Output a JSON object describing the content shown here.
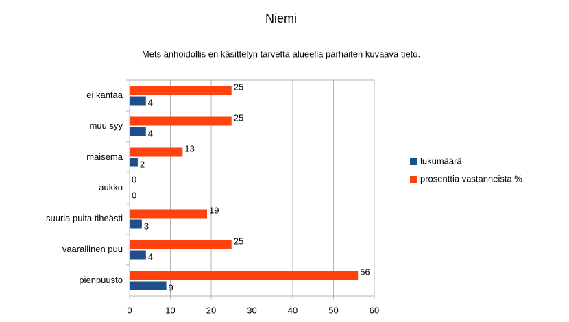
{
  "chart_data": {
    "type": "hbar",
    "title": "Niemi",
    "subtitle": "Mets änhoidollis en käsittelyn tarvetta alueella parhaiten kuvaava tieto.",
    "categories": [
      "ei kantaa",
      "muu syy",
      "maisema",
      "aukko",
      "suuria puita tiheästi",
      "vaarallinen puu",
      "pienpuusto"
    ],
    "series": [
      {
        "name": "lukumäärä",
        "color": "#1f4e8c",
        "values": [
          4,
          4,
          2,
          0,
          3,
          4,
          9
        ]
      },
      {
        "name": "prosenttia vastanneista %",
        "color": "#ff420e",
        "values": [
          25,
          25,
          13,
          0,
          19,
          25,
          56
        ]
      }
    ],
    "xlim": [
      0,
      60
    ],
    "xticks": [
      0,
      10,
      20,
      30,
      40,
      50,
      60
    ],
    "grid": true,
    "legend": "right"
  }
}
